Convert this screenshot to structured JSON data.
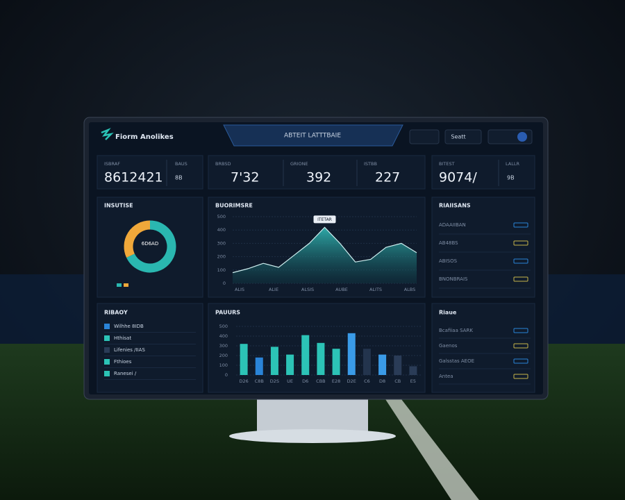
{
  "header": {
    "brand": "Fiorm Anolikes",
    "tab": "ABTEIT LATTTBAIE",
    "button": "Seatt"
  },
  "kpis": [
    {
      "label": "ISBRAF",
      "value": "8612421"
    },
    {
      "label": "BAUS",
      "value": "8B"
    },
    {
      "label": "BRBSD",
      "value": "7'32"
    },
    {
      "label": "GRIONE",
      "value": "392"
    },
    {
      "label": "ISTBB",
      "value": "227"
    },
    {
      "label": "BITEST",
      "value": "9074/"
    },
    {
      "label": "LALLR",
      "value": "9B"
    }
  ],
  "donut": {
    "title": "INSUTISE",
    "center": "6D6AD",
    "values": [
      68,
      32
    ],
    "colors": [
      "#2ab7b0",
      "#f0a83a"
    ]
  },
  "area": {
    "title": "BUORIMSRE",
    "tooltip": "ITETAR",
    "categories": [
      "ALIS",
      "ALIE",
      "ALSIS",
      "AUBE",
      "ALITS",
      "ALBS"
    ],
    "values": [
      80,
      110,
      150,
      120,
      210,
      300,
      420,
      300,
      160,
      180,
      270,
      300,
      230
    ],
    "ylim": [
      0,
      500
    ],
    "yticks": [
      0,
      100,
      200,
      300,
      400,
      500
    ],
    "color": "#34c3be"
  },
  "bars": {
    "title": "PAUURS",
    "categories": [
      "D26",
      "C8B",
      "D2S",
      "UE",
      "D6",
      "CBB",
      "E28",
      "D2E",
      "C6",
      "D8",
      "CB",
      "E5"
    ],
    "values": [
      320,
      180,
      290,
      210,
      410,
      330,
      270,
      430,
      270,
      210,
      200,
      90
    ],
    "colors": [
      "#2cc3b6",
      "#2a84d8",
      "#2cc3b6",
      "#2cc3b6",
      "#2cc3b6",
      "#2cc3b6",
      "#2cc3b6",
      "#3a9be8",
      "#23344d",
      "#3a9be8",
      "#2a3c57",
      "#2a3c57"
    ],
    "ylim": [
      0,
      500
    ],
    "yticks": [
      0,
      100,
      200,
      300,
      400,
      500
    ]
  },
  "right_top": {
    "title": "RIAIISANS",
    "rows": [
      "ADAAIIBAN",
      "AB48BS",
      "ABISOS",
      "BNONBRAIS"
    ]
  },
  "left_bottom": {
    "title": "RIBAOY",
    "rows": [
      "Wilhhe 8IDB",
      "Hthisat",
      "Lifenies /IIAS",
      "Fthioes",
      "Ranesei /"
    ]
  },
  "right_bottom": {
    "title": "Riaue",
    "rows": [
      "Bcafiiaa SARK",
      "Gaenos",
      "Galsstas AEOE",
      "Antea"
    ]
  }
}
